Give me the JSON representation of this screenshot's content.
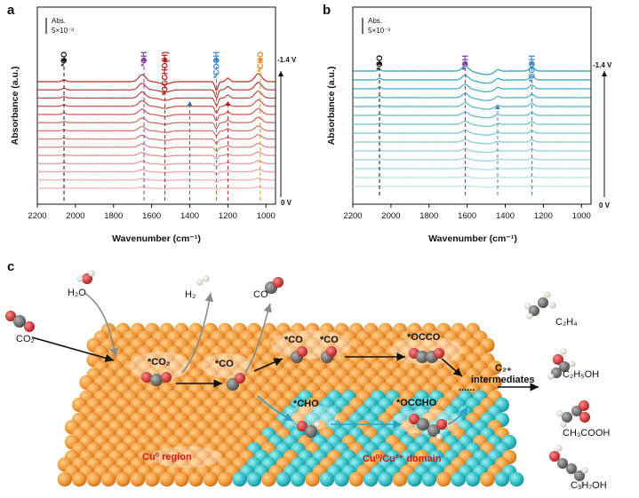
{
  "panels": {
    "a": {
      "letter": "a",
      "scale_label": "Abs.",
      "scale_value": "5×10⁻³",
      "xlabel": "Wavenumber (cm⁻¹)",
      "ylabel": "Absorbance (a.u.)",
      "x_ticks": [
        "2200",
        "2000",
        "1800",
        "1600",
        "1400",
        "1200",
        "1000"
      ],
      "top_potential": "-1.4 V",
      "bottom_potential": "0 V",
      "annotations": [
        {
          "label": "*CO",
          "wavenumber": 2060,
          "color": "#111111"
        },
        {
          "label": "*OH",
          "wavenumber": 1640,
          "color": "#7a3fa0"
        },
        {
          "label": "*OCCHO(H)",
          "wavenumber": 1530,
          "color": "#b0201f"
        },
        {
          "label": "",
          "wavenumber": 1400,
          "color": "#3a6fb0"
        },
        {
          "label": "*COOH",
          "wavenumber": 1260,
          "color": "#3a86c4"
        },
        {
          "label": "",
          "wavenumber": 1200,
          "color": "#b0201f"
        },
        {
          "label": "*CHO",
          "wavenumber": 1030,
          "color": "#e08a1e"
        }
      ]
    },
    "b": {
      "letter": "b",
      "scale_label": "Abs.",
      "scale_value": "5×10⁻³",
      "xlabel": "Wavenumber (cm⁻¹)",
      "ylabel": "Absorbance (a.u.)",
      "x_ticks": [
        "2200",
        "2000",
        "1800",
        "1600",
        "1400",
        "1200",
        "1000"
      ],
      "top_potential": "-1.4 V",
      "bottom_potential": "0 V",
      "annotations": [
        {
          "label": "*CO",
          "wavenumber": 2060,
          "color": "#111111"
        },
        {
          "label": "*OH",
          "wavenumber": 1610,
          "color": "#7a3fa0"
        },
        {
          "label": "",
          "wavenumber": 1440,
          "color": "#3a86c4"
        },
        {
          "label": "*COOH",
          "wavenumber": 1260,
          "color": "#3a86c4"
        }
      ]
    },
    "c": {
      "letter": "c",
      "reactants": {
        "h2o": "H₂O",
        "co2": "CO₂"
      },
      "products": {
        "h2": "H₂",
        "co": "CO"
      },
      "intermediates": {
        "co2": "*CO₂",
        "co1": "*CO",
        "co2a": "*CO",
        "co2b": "*CO",
        "occo": "*OCCO",
        "cho": "*CHO",
        "occho": "*OCCHO"
      },
      "c2_label": "C₂₊",
      "c2_label2": "intermediates",
      "dots": "......",
      "regions": {
        "cu0": "Cu⁰ region",
        "mixed": "Cu⁰/Cu²⁺ domain"
      },
      "final_products": [
        "C₂H₄",
        "C₂H₅OH",
        "CH₃COOH",
        "C₃H₇OH"
      ]
    }
  },
  "colors": {
    "red_series": "#b8322c",
    "blue_series": "#2a9fb5",
    "cu_orange": "#f3a049",
    "cu2_cyan": "#3ec4c9",
    "arrow_black": "#111111",
    "arrow_gray": "#8a8a8a",
    "arrow_blue": "#2aa0c8"
  }
}
